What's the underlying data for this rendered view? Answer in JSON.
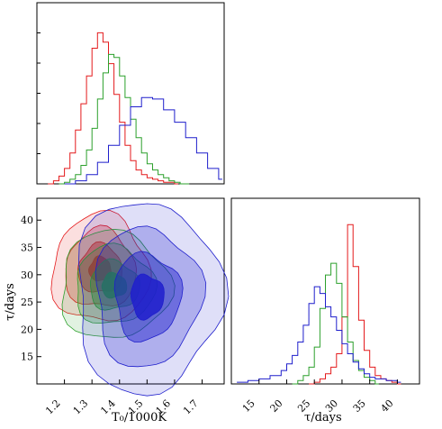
{
  "chart_data": [
    {
      "type": "histogram",
      "panel": "top-left",
      "x_variable": "T0/1000K",
      "xlim": [
        1.1,
        1.78
      ],
      "series": [
        {
          "color": "#e41a1c",
          "x": [
            1.14,
            1.16,
            1.18,
            1.2,
            1.22,
            1.24,
            1.26,
            1.28,
            1.3,
            1.32,
            1.34,
            1.36,
            1.38,
            1.4,
            1.42,
            1.44,
            1.46,
            1.48,
            1.5,
            1.52,
            1.54,
            1.56,
            1.58,
            1.6
          ],
          "values": [
            0,
            2,
            5,
            10,
            20,
            35,
            52,
            70,
            88,
            98,
            92,
            78,
            58,
            40,
            25,
            15,
            9,
            6,
            4,
            3,
            2,
            1,
            1,
            0
          ]
        },
        {
          "color": "#2ca02c",
          "x": [
            1.18,
            1.2,
            1.22,
            1.24,
            1.26,
            1.28,
            1.3,
            1.32,
            1.34,
            1.36,
            1.38,
            1.4,
            1.42,
            1.44,
            1.46,
            1.48,
            1.5,
            1.52,
            1.54,
            1.56,
            1.58,
            1.6,
            1.62,
            1.64
          ],
          "values": [
            0,
            1,
            3,
            6,
            12,
            22,
            36,
            55,
            72,
            84,
            82,
            70,
            56,
            42,
            30,
            20,
            13,
            9,
            6,
            4,
            2,
            1,
            0,
            0
          ]
        },
        {
          "color": "#1f1fcc",
          "x": [
            1.2,
            1.24,
            1.28,
            1.32,
            1.36,
            1.4,
            1.44,
            1.48,
            1.52,
            1.56,
            1.6,
            1.64,
            1.68,
            1.72,
            1.76
          ],
          "values": [
            0,
            2,
            6,
            14,
            25,
            38,
            50,
            56,
            55,
            48,
            40,
            30,
            20,
            10,
            3
          ]
        }
      ]
    },
    {
      "type": "contour",
      "panel": "bottom-left",
      "xlabel": "T0/1000K",
      "ylabel": "τ/days",
      "xlim": [
        1.1,
        1.78
      ],
      "ylim": [
        10,
        44
      ],
      "xticks": [
        "1.2",
        "1.3",
        "1.4",
        "1.5",
        "1.6",
        "1.7"
      ],
      "yticks": [
        "15",
        "20",
        "25",
        "30",
        "35",
        "40"
      ],
      "series": [
        {
          "color": "#e41a1c",
          "center": [
            1.33,
            31.0
          ],
          "spread": [
            0.08,
            4.5
          ]
        },
        {
          "color": "#2ca02c",
          "center": [
            1.38,
            28.0
          ],
          "spread": [
            0.09,
            4.5
          ]
        },
        {
          "color": "#1f1fcc",
          "center": [
            1.5,
            26.0
          ],
          "spread": [
            0.12,
            8.0
          ]
        }
      ]
    },
    {
      "type": "histogram",
      "panel": "bottom-right",
      "xlabel": "τ/days",
      "xlim": [
        10,
        44
      ],
      "xticks": [
        "15",
        "20",
        "25",
        "30",
        "35",
        "40"
      ],
      "series": [
        {
          "color": "#e41a1c",
          "x": [
            24,
            25,
            26,
            27,
            28,
            29,
            30,
            31,
            32,
            33,
            34,
            35,
            36,
            37,
            38,
            39,
            40
          ],
          "values": [
            0,
            1,
            3,
            6,
            10,
            18,
            40,
            95,
            70,
            38,
            20,
            10,
            5,
            3,
            2,
            1,
            0
          ]
        },
        {
          "color": "#2ca02c",
          "x": [
            21,
            22,
            23,
            24,
            25,
            26,
            27,
            28,
            29,
            30,
            31,
            32,
            33,
            34,
            35,
            36
          ],
          "values": [
            0,
            2,
            5,
            10,
            22,
            45,
            65,
            72,
            60,
            40,
            25,
            14,
            8,
            4,
            2,
            0
          ]
        },
        {
          "color": "#1f1fcc",
          "x": [
            11,
            13,
            15,
            17,
            19,
            20,
            21,
            22,
            23,
            24,
            25,
            26,
            27,
            28,
            29,
            30,
            31,
            32,
            33,
            34,
            35,
            36,
            38,
            40
          ],
          "values": [
            1,
            2,
            3,
            5,
            8,
            12,
            17,
            25,
            35,
            48,
            58,
            54,
            46,
            40,
            32,
            24,
            18,
            13,
            9,
            6,
            4,
            3,
            2,
            1
          ]
        }
      ]
    }
  ],
  "labels": {
    "x_bottom_left": "T₀/1000K",
    "y_bottom_left": "τ/days",
    "x_bottom_right": "τ/days"
  }
}
